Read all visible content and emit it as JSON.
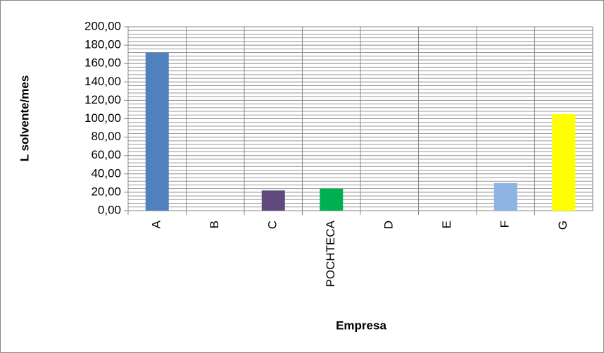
{
  "chart_data": {
    "type": "bar",
    "x_label": "Empresa",
    "y_label": "L solvente/mes",
    "categories": [
      "A",
      "B",
      "C",
      "POCHTECA",
      "D",
      "E",
      "F",
      "G"
    ],
    "values": [
      172,
      0,
      22,
      24,
      0,
      0,
      30,
      105
    ],
    "colors": [
      "#4f81bd",
      null,
      "#604a7b",
      "#00b050",
      null,
      null,
      "#8eb4e3",
      "#ffff00"
    ],
    "ylim": [
      0,
      200
    ],
    "yticks": [
      {
        "value": 0,
        "label": "0,00"
      },
      {
        "value": 20,
        "label": "20,00"
      },
      {
        "value": 40,
        "label": "40,00"
      },
      {
        "value": 60,
        "label": "60,00"
      },
      {
        "value": 80,
        "label": "80,00"
      },
      {
        "value": 100,
        "label": "100,00"
      },
      {
        "value": 120,
        "label": "120,00"
      },
      {
        "value": 140,
        "label": "140,00"
      },
      {
        "value": 160,
        "label": "160,00"
      },
      {
        "value": 180,
        "label": "180,00"
      },
      {
        "value": 200,
        "label": "200,00"
      }
    ],
    "grid": true,
    "minor_grid": true
  }
}
